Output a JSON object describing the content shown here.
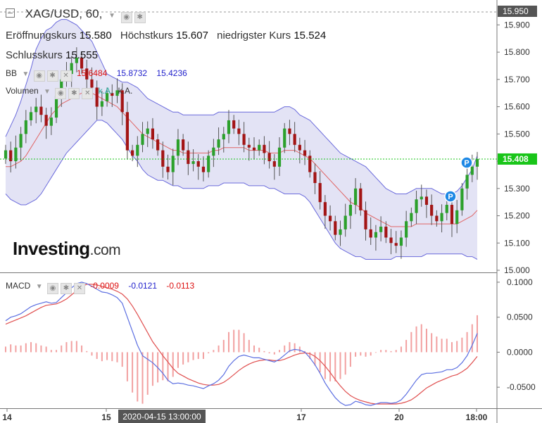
{
  "header": {
    "symbol_title": "XAG/USD, 60,",
    "open_label": "Eröffnungskurs",
    "open_value": "15.580",
    "high_label": "Höchstkurs",
    "high_value": "15.607",
    "low_label": "niedrigster Kurs",
    "low_value": "15.524",
    "close_label": "Schlusskurs",
    "close_value": "15.555"
  },
  "bb_legend": {
    "name": "BB",
    "middle": "15.6484",
    "upper": "15.8732",
    "lower": "15.4236"
  },
  "volume_legend": {
    "name": "Volumen",
    "value1": "k.A.",
    "value2": "k.A."
  },
  "macd_legend": {
    "name": "MACD",
    "hist": "-0.0009",
    "macd": "-0.0121",
    "signal": "-0.0113"
  },
  "logo": {
    "main": "Investing",
    "suffix": ".com"
  },
  "colors": {
    "up": "#2ca02c",
    "down": "#a31515",
    "bb_upper_lower": "#6b6bdc",
    "bb_mid": "#e06666",
    "band_fill": "#dcdcf3",
    "macd_line": "#5b6ee1",
    "signal_line": "#e05050",
    "hist": "#f2a0a0",
    "price_line": "#19c519"
  },
  "price_tag": "15.408",
  "top_tag": "15.950",
  "crosshair_label": "2020-04-15 13:00:00",
  "chart_data": {
    "type": "candlestick",
    "price_axis": {
      "min": 15.0,
      "max": 15.95,
      "ticks": [
        "15.950",
        "15.900",
        "15.800",
        "15.700",
        "15.600",
        "15.500",
        "15.400",
        "15.300",
        "15.200",
        "15.100",
        "15.000"
      ]
    },
    "macd_axis": {
      "min": -0.08,
      "max": 0.11,
      "ticks": [
        "0.1000",
        "0.0500",
        "0.0000",
        "-0.0500"
      ]
    },
    "x_ticks": [
      "14",
      "15",
      "17",
      "20",
      "18:00"
    ],
    "current_price": 15.408,
    "close": [
      15.44,
      15.4,
      15.45,
      15.5,
      15.55,
      15.58,
      15.6,
      15.57,
      15.53,
      15.56,
      15.64,
      15.7,
      15.72,
      15.76,
      15.78,
      15.74,
      15.7,
      15.67,
      15.6,
      15.62,
      15.65,
      15.64,
      15.66,
      15.58,
      15.44,
      15.42,
      15.46,
      15.5,
      15.52,
      15.48,
      15.44,
      15.38,
      15.36,
      15.42,
      15.48,
      15.44,
      15.39,
      15.4,
      15.38,
      15.36,
      15.42,
      15.45,
      15.48,
      15.5,
      15.55,
      15.52,
      15.5,
      15.46,
      15.45,
      15.44,
      15.46,
      15.43,
      15.4,
      15.38,
      15.45,
      15.52,
      15.5,
      15.46,
      15.44,
      15.42,
      15.36,
      15.32,
      15.25,
      15.2,
      15.18,
      15.13,
      15.15,
      15.2,
      15.24,
      15.3,
      15.22,
      15.15,
      15.12,
      15.14,
      15.16,
      15.12,
      15.1,
      15.09,
      15.12,
      15.18,
      15.21,
      15.26,
      15.27,
      15.24,
      15.2,
      15.18,
      15.21,
      15.24,
      15.17,
      15.22,
      15.3,
      15.35,
      15.38,
      15.408
    ],
    "bb_upper": [
      15.49,
      15.53,
      15.57,
      15.62,
      15.68,
      15.74,
      15.81,
      15.85,
      15.88,
      15.89,
      15.91,
      15.92,
      15.92,
      15.91,
      15.9,
      15.88,
      15.86,
      15.84,
      15.8,
      15.76,
      15.72,
      15.71,
      15.7,
      15.69,
      15.69,
      15.68,
      15.67,
      15.65,
      15.63,
      15.62,
      15.61,
      15.6,
      15.59,
      15.58,
      15.58,
      15.57,
      15.57,
      15.57,
      15.57,
      15.57,
      15.57,
      15.57,
      15.58,
      15.58,
      15.58,
      15.58,
      15.58,
      15.58,
      15.58,
      15.58,
      15.58,
      15.58,
      15.58,
      15.58,
      15.59,
      15.6,
      15.6,
      15.59,
      15.57,
      15.56,
      15.55,
      15.53,
      15.51,
      15.49,
      15.47,
      15.45,
      15.43,
      15.42,
      15.41,
      15.4,
      15.39,
      15.38,
      15.36,
      15.34,
      15.32,
      15.3,
      15.29,
      15.28,
      15.28,
      15.28,
      15.29,
      15.3,
      15.3,
      15.3,
      15.3,
      15.29,
      15.28,
      15.28,
      15.28,
      15.29,
      15.31,
      15.34,
      15.37,
      15.42
    ],
    "bb_mid": [
      15.38,
      15.38,
      15.39,
      15.4,
      15.42,
      15.45,
      15.48,
      15.51,
      15.54,
      15.57,
      15.59,
      15.61,
      15.62,
      15.63,
      15.64,
      15.65,
      15.65,
      15.65,
      15.64,
      15.63,
      15.62,
      15.61,
      15.6,
      15.58,
      15.56,
      15.54,
      15.52,
      15.5,
      15.49,
      15.48,
      15.47,
      15.46,
      15.45,
      15.44,
      15.44,
      15.43,
      15.43,
      15.43,
      15.43,
      15.43,
      15.43,
      15.44,
      15.44,
      15.45,
      15.45,
      15.45,
      15.45,
      15.45,
      15.44,
      15.44,
      15.44,
      15.44,
      15.43,
      15.43,
      15.43,
      15.44,
      15.44,
      15.44,
      15.43,
      15.42,
      15.41,
      15.39,
      15.37,
      15.35,
      15.33,
      15.31,
      15.29,
      15.27,
      15.25,
      15.24,
      15.23,
      15.21,
      15.2,
      15.19,
      15.18,
      15.17,
      15.16,
      15.16,
      15.16,
      15.16,
      15.16,
      15.17,
      15.17,
      15.17,
      15.17,
      15.17,
      15.17,
      15.17,
      15.17,
      15.17,
      15.18,
      15.19,
      15.2,
      15.22
    ],
    "bb_lower": [
      15.28,
      15.26,
      15.25,
      15.24,
      15.24,
      15.25,
      15.26,
      15.28,
      15.31,
      15.34,
      15.37,
      15.4,
      15.43,
      15.45,
      15.47,
      15.49,
      15.51,
      15.53,
      15.55,
      15.55,
      15.54,
      15.52,
      15.5,
      15.48,
      15.45,
      15.42,
      15.4,
      15.37,
      15.35,
      15.34,
      15.33,
      15.33,
      15.32,
      15.31,
      15.31,
      15.3,
      15.3,
      15.3,
      15.3,
      15.3,
      15.31,
      15.31,
      15.31,
      15.32,
      15.32,
      15.32,
      15.32,
      15.32,
      15.31,
      15.31,
      15.31,
      15.31,
      15.3,
      15.3,
      15.29,
      15.28,
      15.28,
      15.28,
      15.28,
      15.27,
      15.25,
      15.22,
      15.19,
      15.16,
      15.13,
      15.1,
      15.08,
      15.07,
      15.06,
      15.05,
      15.05,
      15.04,
      15.04,
      15.04,
      15.04,
      15.04,
      15.04,
      15.05,
      15.05,
      15.05,
      15.05,
      15.05,
      15.05,
      15.06,
      15.06,
      15.06,
      15.06,
      15.06,
      15.06,
      15.06,
      15.06,
      15.05,
      15.05,
      15.04
    ],
    "macd": [
      0.045,
      0.05,
      0.052,
      0.055,
      0.06,
      0.065,
      0.068,
      0.07,
      0.072,
      0.07,
      0.071,
      0.078,
      0.085,
      0.092,
      0.098,
      0.1,
      0.098,
      0.094,
      0.09,
      0.086,
      0.085,
      0.082,
      0.078,
      0.07,
      0.05,
      0.03,
      0.01,
      -0.005,
      -0.01,
      -0.015,
      -0.022,
      -0.03,
      -0.04,
      -0.045,
      -0.044,
      -0.045,
      -0.047,
      -0.048,
      -0.05,
      -0.052,
      -0.048,
      -0.045,
      -0.04,
      -0.032,
      -0.02,
      -0.012,
      -0.006,
      -0.004,
      -0.006,
      -0.008,
      -0.008,
      -0.01,
      -0.012,
      -0.014,
      -0.01,
      -0.004,
      0.002,
      0.004,
      0.003,
      0.0,
      -0.008,
      -0.018,
      -0.03,
      -0.044,
      -0.055,
      -0.065,
      -0.072,
      -0.076,
      -0.075,
      -0.07,
      -0.072,
      -0.075,
      -0.076,
      -0.074,
      -0.072,
      -0.072,
      -0.073,
      -0.072,
      -0.068,
      -0.06,
      -0.05,
      -0.04,
      -0.032,
      -0.03,
      -0.03,
      -0.029,
      -0.028,
      -0.025,
      -0.025,
      -0.022,
      -0.015,
      -0.005,
      0.01,
      0.027
    ],
    "signal": [
      0.04,
      0.043,
      0.046,
      0.049,
      0.052,
      0.056,
      0.06,
      0.064,
      0.067,
      0.068,
      0.069,
      0.072,
      0.076,
      0.082,
      0.088,
      0.094,
      0.097,
      0.097,
      0.096,
      0.094,
      0.092,
      0.09,
      0.087,
      0.083,
      0.076,
      0.066,
      0.054,
      0.041,
      0.028,
      0.015,
      0.005,
      -0.005,
      -0.014,
      -0.023,
      -0.03,
      -0.034,
      -0.038,
      -0.041,
      -0.044,
      -0.046,
      -0.047,
      -0.047,
      -0.046,
      -0.043,
      -0.038,
      -0.032,
      -0.026,
      -0.021,
      -0.017,
      -0.014,
      -0.012,
      -0.011,
      -0.011,
      -0.012,
      -0.012,
      -0.01,
      -0.007,
      -0.004,
      -0.002,
      -0.001,
      -0.002,
      -0.006,
      -0.012,
      -0.02,
      -0.029,
      -0.039,
      -0.048,
      -0.056,
      -0.062,
      -0.066,
      -0.069,
      -0.071,
      -0.073,
      -0.074,
      -0.074,
      -0.074,
      -0.074,
      -0.074,
      -0.073,
      -0.071,
      -0.068,
      -0.063,
      -0.057,
      -0.051,
      -0.047,
      -0.043,
      -0.04,
      -0.037,
      -0.034,
      -0.032,
      -0.028,
      -0.023,
      -0.015,
      -0.006
    ]
  }
}
